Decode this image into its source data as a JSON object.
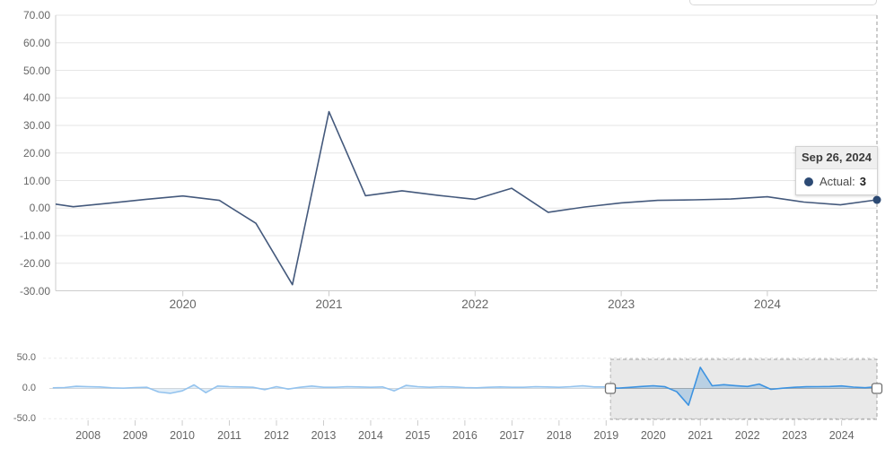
{
  "tooltip": {
    "date": "Sep 26, 2024",
    "series_label": "Actual:",
    "value": "3"
  },
  "chart_data": {
    "type": "line",
    "title": "",
    "series_name": "Actual",
    "frequency": "quarterly",
    "quarters": [
      "2007-Q1",
      "2007-Q2",
      "2007-Q3",
      "2007-Q4",
      "2008-Q1",
      "2008-Q2",
      "2008-Q3",
      "2008-Q4",
      "2009-Q1",
      "2009-Q2",
      "2009-Q3",
      "2009-Q4",
      "2010-Q1",
      "2010-Q2",
      "2010-Q3",
      "2010-Q4",
      "2011-Q1",
      "2011-Q2",
      "2011-Q3",
      "2011-Q4",
      "2012-Q1",
      "2012-Q2",
      "2012-Q3",
      "2012-Q4",
      "2013-Q1",
      "2013-Q2",
      "2013-Q3",
      "2013-Q4",
      "2014-Q1",
      "2014-Q2",
      "2014-Q3",
      "2014-Q4",
      "2015-Q1",
      "2015-Q2",
      "2015-Q3",
      "2015-Q4",
      "2016-Q1",
      "2016-Q2",
      "2016-Q3",
      "2016-Q4",
      "2017-Q1",
      "2017-Q2",
      "2017-Q3",
      "2017-Q4",
      "2018-Q1",
      "2018-Q2",
      "2018-Q3",
      "2018-Q4",
      "2019-Q1",
      "2019-Q2",
      "2019-Q3",
      "2019-Q4",
      "2020-Q1",
      "2020-Q2",
      "2020-Q3",
      "2020-Q4",
      "2021-Q1",
      "2021-Q2",
      "2021-Q3",
      "2021-Q4",
      "2022-Q1",
      "2022-Q2",
      "2022-Q3",
      "2022-Q4",
      "2023-Q1",
      "2023-Q2",
      "2023-Q3",
      "2023-Q4",
      "2024-Q1",
      "2024-Q2",
      "2024-Q3"
    ],
    "values": [
      1,
      1.5,
      3.5,
      3,
      2.5,
      1,
      0.5,
      1.5,
      2,
      -6,
      -8,
      -4,
      6,
      -7,
      4,
      3,
      2.5,
      2,
      -2,
      3,
      -1,
      2,
      4,
      2,
      2,
      3,
      2.5,
      2,
      2.5,
      -4,
      5,
      3,
      2,
      3,
      2.5,
      1.5,
      1,
      2,
      2.5,
      2,
      2,
      3,
      2.5,
      2,
      3,
      4.5,
      2.5,
      2.5,
      0.5,
      1.8,
      3.2,
      4.4,
      2.8,
      -5.5,
      -27.8,
      35,
      4.5,
      6.3,
      4.6,
      3.2,
      7.2,
      -1.5,
      0.4,
      1.9,
      2.8,
      3,
      3.3,
      4.1,
      2.2,
      1.2,
      3
    ],
    "main_chart": {
      "ylim": [
        -30,
        70
      ],
      "y_tick_labels": [
        "70.00",
        "60.00",
        "50.00",
        "40.00",
        "30.00",
        "20.00",
        "10.00",
        "0.00",
        "-10.00",
        "-20.00",
        "-30.00"
      ],
      "y_tick_values": [
        70,
        60,
        50,
        40,
        30,
        20,
        10,
        0,
        -10,
        -20,
        -30
      ],
      "x_tick_labels": [
        "2020",
        "2021",
        "2022",
        "2023",
        "2024"
      ],
      "x_tick_years": [
        2020,
        2021,
        2022,
        2023,
        2024
      ],
      "visible_from": "2018-Q4",
      "grid": true,
      "last_point": {
        "date": "Sep 26, 2024",
        "value": 3
      }
    },
    "navigator": {
      "type": "area",
      "y_tick_labels": [
        "50.0",
        "0.0",
        "-50.0"
      ],
      "y_tick_values": [
        50,
        0,
        -50
      ],
      "grid_dashed_values": [
        50,
        -50
      ],
      "x_tick_labels": [
        "2008",
        "2009",
        "2010",
        "2011",
        "2012",
        "2013",
        "2014",
        "2015",
        "2016",
        "2017",
        "2018",
        "2019",
        "2020",
        "2021",
        "2022",
        "2023",
        "2024"
      ],
      "x_tick_years": [
        2008,
        2009,
        2010,
        2011,
        2012,
        2013,
        2014,
        2015,
        2016,
        2017,
        2018,
        2019,
        2020,
        2021,
        2022,
        2023,
        2024
      ],
      "selected_from": "2019-Q1",
      "selected_to": "2024-Q3"
    },
    "colors": {
      "actual_line": "#44597c",
      "marker": "#2c4a74",
      "navigator_line": "#3d93e1",
      "navigator_fill": "rgba(77,151,216,0.30)",
      "grid": "#e6e6e6",
      "axis": "#cccccc",
      "crosshair": "#999999",
      "selection_fill": "rgba(0,0,0,0.085)",
      "selection_border": "#a3a3a3",
      "axis_label": "#666666"
    }
  }
}
